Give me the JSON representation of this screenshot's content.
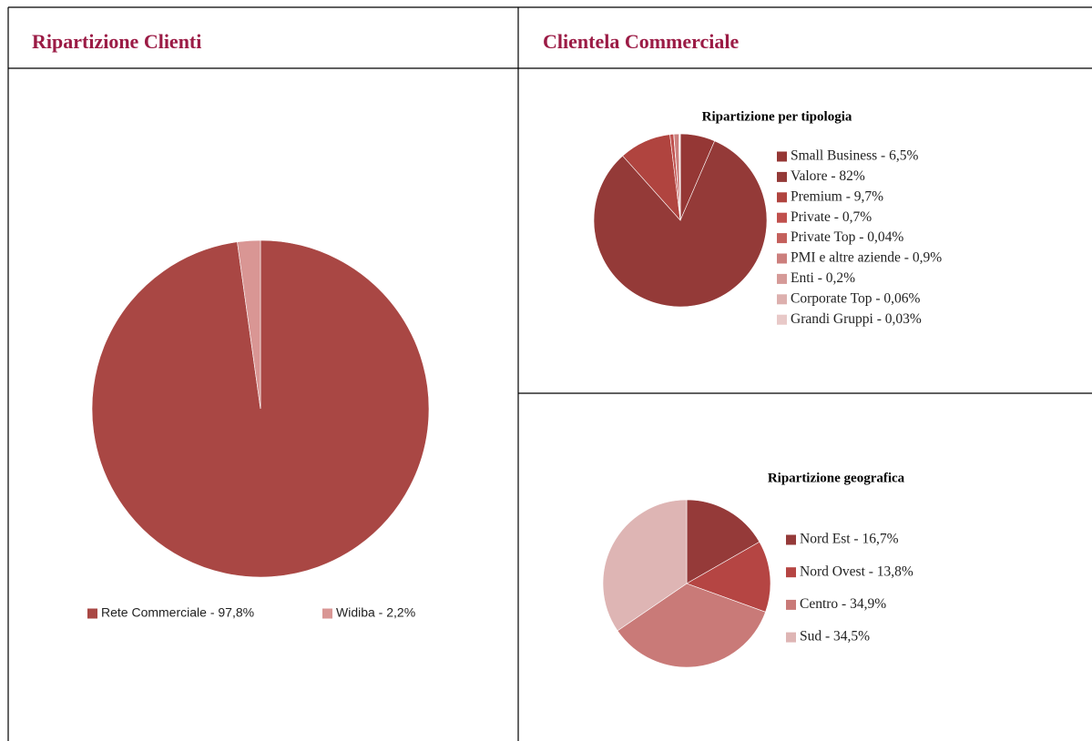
{
  "header": {
    "left": "Ripartizione Clienti",
    "right": "Clientela Commerciale"
  },
  "chart_data": [
    {
      "type": "pie",
      "categories": [
        "Rete Commerciale - 97,8%",
        "Widiba - 2,2%"
      ],
      "values": [
        97.8,
        2.2
      ],
      "colors": [
        "#a94744",
        "#d99694"
      ]
    },
    {
      "type": "pie",
      "title": "Ripartizione per tipologia",
      "categories": [
        "Small Business - 6,5%",
        "Valore - 82%",
        "Premium - 9,7%",
        "Private - 0,7%",
        "Private Top - 0,04%",
        "PMI e altre aziende - 0,9%",
        "Enti - 0,2%",
        "Corporate Top - 0,06%",
        "Grandi Gruppi - 0,03%"
      ],
      "values": [
        6.5,
        82,
        9.7,
        0.7,
        0.04,
        0.9,
        0.2,
        0.06,
        0.03
      ],
      "colors": [
        "#953735",
        "#943a38",
        "#b0443f",
        "#c0504d",
        "#c4605c",
        "#cc7f7d",
        "#d59a98",
        "#ddb0ae",
        "#e8c9c8"
      ]
    },
    {
      "type": "pie",
      "title": "Ripartizione geografica",
      "categories": [
        "Nord Est - 16,7%",
        "Nord Ovest - 13,8%",
        "Centro - 34,9%",
        "Sud - 34,5%"
      ],
      "values": [
        16.7,
        13.8,
        34.9,
        34.5
      ],
      "colors": [
        "#953a39",
        "#b54543",
        "#c97a78",
        "#deb5b4"
      ]
    }
  ]
}
